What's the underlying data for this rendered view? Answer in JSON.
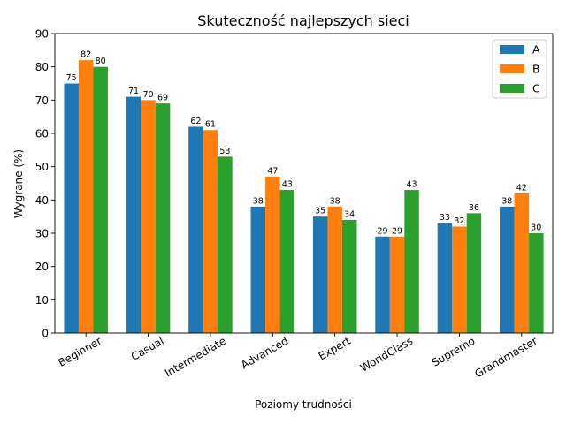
{
  "chart_data": {
    "type": "bar",
    "title": "Skuteczność najlepszych sieci",
    "xlabel": "Poziomy trudności",
    "ylabel": "Wygrane (%)",
    "ylim": [
      0,
      90
    ],
    "yticks": [
      0,
      10,
      20,
      30,
      40,
      50,
      60,
      70,
      80,
      90
    ],
    "grid": false,
    "legend_position": "top-right",
    "categories": [
      "Beginner",
      "Casual",
      "Intermediate",
      "Advanced",
      "Expert",
      "WorldClass",
      "Supremo",
      "Grandmaster"
    ],
    "series": [
      {
        "name": "A",
        "color": "#1f77b4",
        "values": [
          75,
          71,
          62,
          38,
          35,
          29,
          33,
          38
        ]
      },
      {
        "name": "B",
        "color": "#ff7f0e",
        "values": [
          82,
          70,
          61,
          47,
          38,
          29,
          32,
          42
        ]
      },
      {
        "name": "C",
        "color": "#2ca02c",
        "values": [
          80,
          69,
          53,
          43,
          34,
          43,
          36,
          30
        ]
      }
    ]
  }
}
